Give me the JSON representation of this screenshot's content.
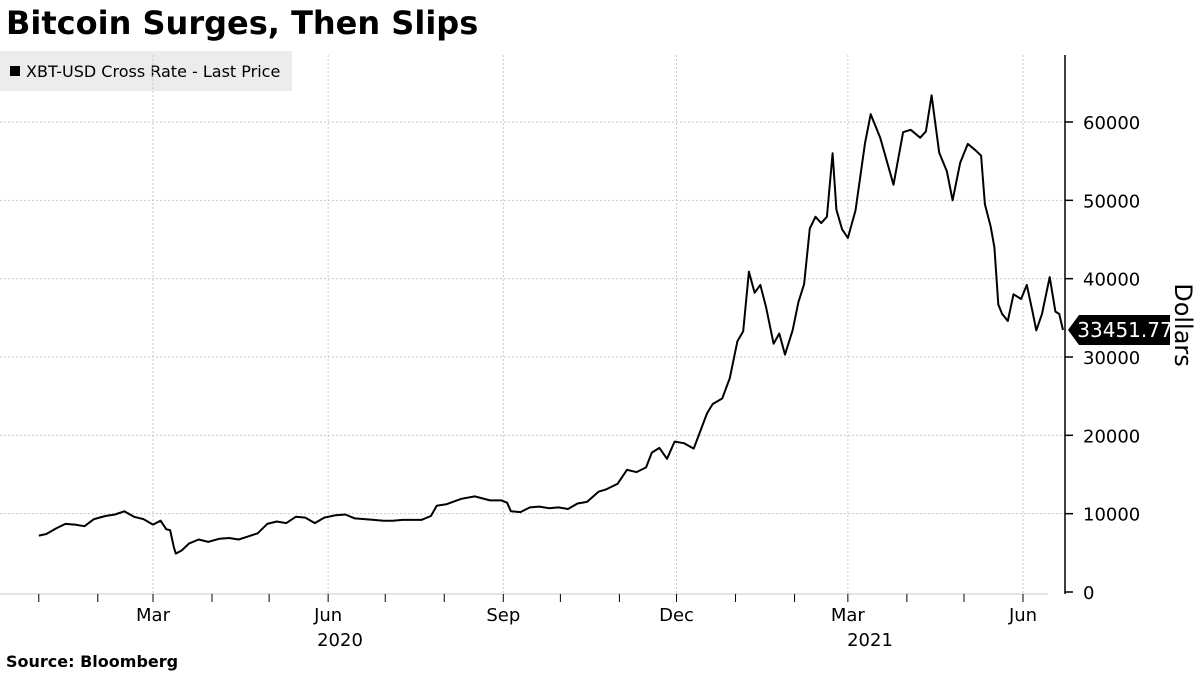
{
  "chart_data": {
    "type": "line",
    "title": "Bitcoin Surges, Then Slips",
    "legend": "XBT-USD Cross Rate - Last Price",
    "legend_position": "top-left",
    "source": "Source:  Bloomberg",
    "ylabel": "Dollars",
    "ylim": [
      0,
      68000
    ],
    "y_ticks": [
      0,
      10000,
      20000,
      30000,
      40000,
      50000,
      60000
    ],
    "y_axis_side": "right",
    "xlim": [
      "2020-01-01",
      "2021-06-22"
    ],
    "x_month_labels": [
      {
        "date": "2020-03-01",
        "label": "Mar"
      },
      {
        "date": "2020-06-01",
        "label": "Jun"
      },
      {
        "date": "2020-09-01",
        "label": "Sep"
      },
      {
        "date": "2020-12-01",
        "label": "Dec"
      },
      {
        "date": "2021-03-01",
        "label": "Mar"
      },
      {
        "date": "2021-06-01",
        "label": "Jun"
      }
    ],
    "x_gridlines": [
      "2020-03-01",
      "2020-06-01",
      "2020-09-01",
      "2020-12-01",
      "2021-03-01",
      "2021-06-01"
    ],
    "x_year_labels": [
      {
        "date": "2020-07-01",
        "label": "2020"
      },
      {
        "date": "2021-03-15",
        "label": "2021"
      }
    ],
    "grid": true,
    "line_color": "#000000",
    "last_value": 33451.77,
    "last_value_label": "33451.77",
    "series": [
      {
        "x": [
          "2020-01-01",
          "2020-01-05",
          "2020-01-10",
          "2020-01-15",
          "2020-01-20",
          "2020-01-25",
          "2020-01-30",
          "2020-02-05",
          "2020-02-10",
          "2020-02-15",
          "2020-02-20",
          "2020-02-25",
          "2020-03-01",
          "2020-03-05",
          "2020-03-08",
          "2020-03-10",
          "2020-03-12",
          "2020-03-13",
          "2020-03-16",
          "2020-03-20",
          "2020-03-25",
          "2020-03-30",
          "2020-04-05",
          "2020-04-10",
          "2020-04-15",
          "2020-04-20",
          "2020-04-25",
          "2020-04-30",
          "2020-05-05",
          "2020-05-10",
          "2020-05-15",
          "2020-05-20",
          "2020-05-25",
          "2020-05-30",
          "2020-06-05",
          "2020-06-10",
          "2020-06-15",
          "2020-06-20",
          "2020-06-25",
          "2020-06-30",
          "2020-07-05",
          "2020-07-10",
          "2020-07-15",
          "2020-07-20",
          "2020-07-25",
          "2020-07-28",
          "2020-08-02",
          "2020-08-10",
          "2020-08-17",
          "2020-08-25",
          "2020-08-31",
          "2020-09-03",
          "2020-09-05",
          "2020-09-10",
          "2020-09-15",
          "2020-09-20",
          "2020-09-25",
          "2020-09-30",
          "2020-10-05",
          "2020-10-10",
          "2020-10-15",
          "2020-10-21",
          "2020-10-25",
          "2020-10-31",
          "2020-11-05",
          "2020-11-10",
          "2020-11-15",
          "2020-11-18",
          "2020-11-22",
          "2020-11-26",
          "2020-11-30",
          "2020-12-05",
          "2020-12-10",
          "2020-12-17",
          "2020-12-20",
          "2020-12-25",
          "2020-12-29",
          "2021-01-02",
          "2021-01-05",
          "2021-01-08",
          "2021-01-11",
          "2021-01-14",
          "2021-01-17",
          "2021-01-21",
          "2021-01-24",
          "2021-01-27",
          "2021-01-31",
          "2021-02-03",
          "2021-02-06",
          "2021-02-09",
          "2021-02-12",
          "2021-02-15",
          "2021-02-18",
          "2021-02-21",
          "2021-02-23",
          "2021-02-26",
          "2021-03-01",
          "2021-03-05",
          "2021-03-10",
          "2021-03-13",
          "2021-03-18",
          "2021-03-25",
          "2021-03-30",
          "2021-04-03",
          "2021-04-08",
          "2021-04-11",
          "2021-04-14",
          "2021-04-18",
          "2021-04-22",
          "2021-04-25",
          "2021-04-29",
          "2021-05-03",
          "2021-05-07",
          "2021-05-10",
          "2021-05-12",
          "2021-05-15",
          "2021-05-17",
          "2021-05-19",
          "2021-05-21",
          "2021-05-24",
          "2021-05-27",
          "2021-05-31",
          "2021-06-03",
          "2021-06-06",
          "2021-06-08",
          "2021-06-11",
          "2021-06-15",
          "2021-06-18",
          "2021-06-20",
          "2021-06-22"
        ],
        "values": [
          7200,
          7400,
          8100,
          8700,
          8600,
          8400,
          9300,
          9700,
          9900,
          10300,
          9600,
          9300,
          8600,
          9100,
          8000,
          7900,
          5700,
          4900,
          5300,
          6200,
          6700,
          6400,
          6800,
          6900,
          6700,
          7100,
          7500,
          8700,
          9000,
          8800,
          9600,
          9500,
          8800,
          9500,
          9800,
          9900,
          9400,
          9300,
          9200,
          9100,
          9100,
          9200,
          9200,
          9200,
          9700,
          11000,
          11200,
          11900,
          12200,
          11700,
          11700,
          11400,
          10300,
          10200,
          10800,
          10900,
          10700,
          10800,
          10600,
          11300,
          11500,
          12800,
          13100,
          13800,
          15600,
          15300,
          15900,
          17800,
          18400,
          17000,
          19200,
          19000,
          18300,
          22800,
          24000,
          24700,
          27300,
          32000,
          33300,
          40900,
          38200,
          39200,
          36400,
          31700,
          33000,
          30300,
          33400,
          37000,
          39300,
          46400,
          47900,
          47100,
          47900,
          56000,
          48800,
          46300,
          45200,
          48700,
          57300,
          61000,
          58000,
          52000,
          58700,
          59000,
          58000,
          58800,
          63400,
          56100,
          53700,
          50000,
          54800,
          57200,
          56400,
          55700,
          49500,
          46700,
          44000,
          36700,
          35500,
          34600,
          38000,
          37400,
          39200,
          35800,
          33400,
          35500,
          40200,
          35800,
          35500,
          33452
        ]
      }
    ]
  }
}
